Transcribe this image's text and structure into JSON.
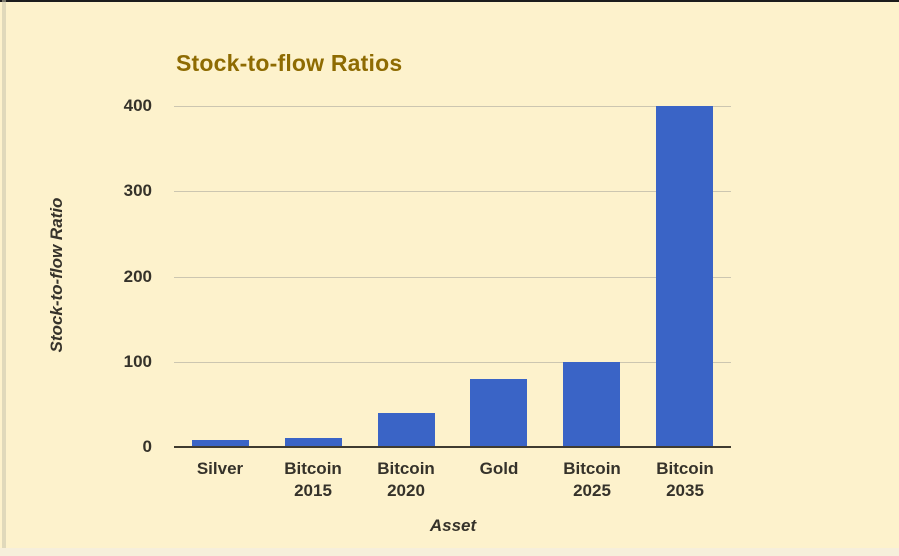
{
  "page": {
    "background_color": "#fdf2cc",
    "frame_top_color": "#1c1c1c",
    "frame_left_color": "#c9c5ad",
    "frame_bottom_color": "#f6efdb"
  },
  "chart_data": {
    "type": "bar",
    "title": "Stock-to-flow Ratios",
    "xlabel": "Asset",
    "ylabel": "Stock-to-flow Ratio",
    "categories": [
      "Silver",
      "Bitcoin 2015",
      "Bitcoin 2020",
      "Gold",
      "Bitcoin 2025",
      "Bitcoin 2035"
    ],
    "category_lines": [
      [
        "Silver"
      ],
      [
        "Bitcoin",
        "2015"
      ],
      [
        "Bitcoin",
        "2020"
      ],
      [
        "Gold"
      ],
      [
        "Bitcoin",
        "2025"
      ],
      [
        "Bitcoin",
        "2035"
      ]
    ],
    "values": [
      8,
      10,
      40,
      80,
      100,
      400
    ],
    "yticks": [
      0,
      100,
      200,
      300,
      400
    ],
    "ylim": [
      0,
      400
    ],
    "grid": true,
    "legend_position": "none",
    "title_color": "#8e6b02",
    "bar_color": "#3a64c6",
    "text_color": "#35322a",
    "gridline_color": "#ccc6b0",
    "axis_line_color": "#3f3b30"
  }
}
